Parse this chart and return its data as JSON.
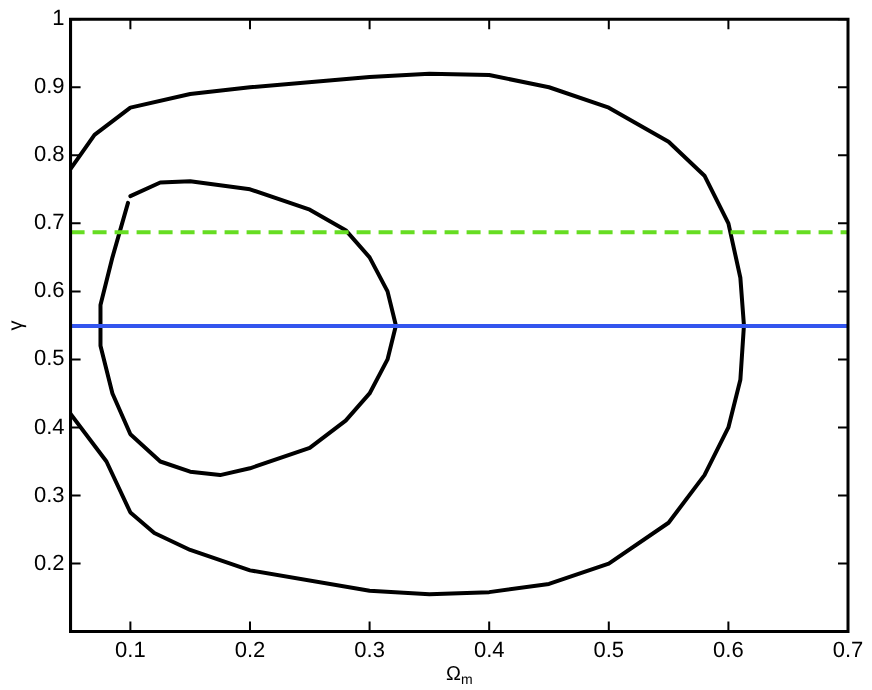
{
  "chart_data": {
    "type": "line",
    "xlabel": "Ω$_{m}$",
    "ylabel": "γ",
    "xlim": [
      0.05,
      0.7
    ],
    "ylim": [
      0.1,
      1
    ],
    "xticks": [
      0.1,
      0.2,
      0.3,
      0.4,
      0.5,
      0.6,
      0.7
    ],
    "yticks": [
      0.2,
      0.3,
      0.4,
      0.5,
      0.6,
      0.7,
      0.8,
      0.9,
      1
    ],
    "grid": false,
    "legend": false,
    "marker": "none",
    "line_style": "solid",
    "series": [
      {
        "type": "line",
        "color": "#000000",
        "x": [
          0.05,
          0.07,
          0.1,
          0.15,
          0.2,
          0.3,
          0.35,
          0.4,
          0.45,
          0.5,
          0.55,
          0.58,
          0.6,
          0.61,
          0.613,
          0.61,
          0.6,
          0.58,
          0.55,
          0.5,
          0.45,
          0.4,
          0.35,
          0.3,
          0.2,
          0.15,
          0.12,
          0.1,
          0.08,
          0.05
        ],
        "values": [
          0.78,
          0.83,
          0.87,
          0.89,
          0.9,
          0.915,
          0.92,
          0.918,
          0.9,
          0.87,
          0.82,
          0.77,
          0.7,
          0.62,
          0.55,
          0.47,
          0.4,
          0.33,
          0.26,
          0.2,
          0.17,
          0.158,
          0.155,
          0.16,
          0.19,
          0.22,
          0.245,
          0.275,
          0.35,
          0.42
        ]
      },
      {
        "type": "line",
        "color": "#000000",
        "x": [
          0.1,
          0.125,
          0.15,
          0.2,
          0.25,
          0.28,
          0.3,
          0.315,
          0.322,
          0.315,
          0.3,
          0.28,
          0.25,
          0.2,
          0.175,
          0.15,
          0.125,
          0.1,
          0.085,
          0.075,
          0.075,
          0.085,
          0.098
        ],
        "values": [
          0.74,
          0.76,
          0.762,
          0.75,
          0.72,
          0.69,
          0.65,
          0.6,
          0.55,
          0.5,
          0.45,
          0.41,
          0.37,
          0.34,
          0.33,
          0.335,
          0.35,
          0.39,
          0.45,
          0.52,
          0.58,
          0.65,
          0.73
        ]
      }
    ],
    "ref_lines": [
      {
        "axis": "y",
        "value": 0.687,
        "color": "#66dd22",
        "line_style": "dashed"
      },
      {
        "axis": "y",
        "value": 0.549,
        "color": "#3355ee",
        "line_style": "solid"
      }
    ]
  }
}
